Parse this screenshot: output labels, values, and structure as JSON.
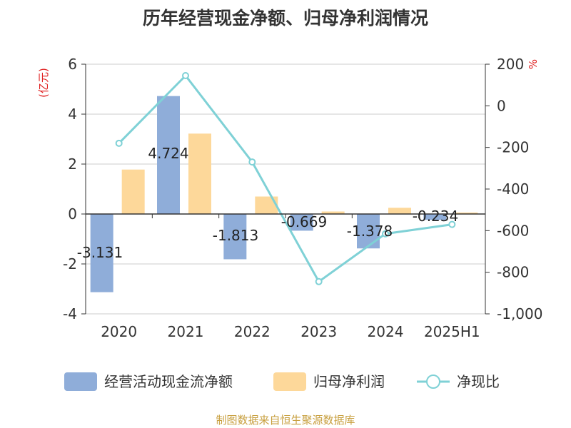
{
  "title": "历年经营现金净额、归母净利润情况",
  "source": "制图数据来自恒生聚源数据库",
  "chart_data": {
    "type": "bar",
    "categories": [
      "2020",
      "2021",
      "2022",
      "2023",
      "2024",
      "2025H1"
    ],
    "y_left": {
      "unit": "(亿元)",
      "range": [
        -4,
        6
      ],
      "ticks": [
        "6",
        "4",
        "2",
        "0",
        "-2",
        "-4"
      ]
    },
    "y_right": {
      "unit": "%",
      "range": [
        -1000,
        200
      ],
      "ticks": [
        "200",
        "0",
        "-200",
        "-400",
        "-600",
        "-800",
        "-1,000"
      ]
    },
    "series": [
      {
        "name": "经营活动现金流净额",
        "kind": "bar",
        "axis": "left",
        "color": "#8fadd9",
        "values": [
          -3.131,
          4.724,
          -1.813,
          -0.669,
          -1.378,
          -0.234
        ],
        "labels": [
          "-3.131",
          "4.724",
          "-1.813",
          "-0.669",
          "-1.378",
          "-0.234"
        ]
      },
      {
        "name": "归母净利润",
        "kind": "bar",
        "axis": "left",
        "color": "#fdd89a",
        "values": [
          1.78,
          3.22,
          0.7,
          0.1,
          0.25,
          0.06
        ]
      },
      {
        "name": "净现比",
        "kind": "line",
        "axis": "right",
        "color": "#7fd1d6",
        "values": [
          -180,
          145,
          -270,
          -845,
          -615,
          -570
        ]
      }
    ],
    "grid": true,
    "legend": "bottom"
  }
}
